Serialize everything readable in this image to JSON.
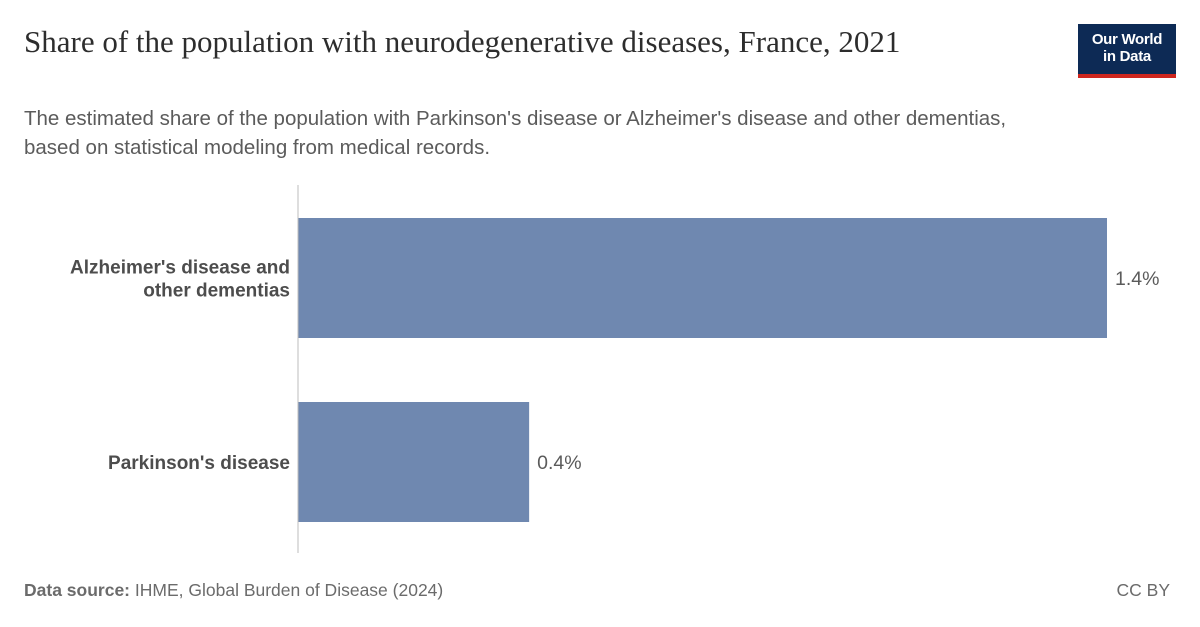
{
  "header": {
    "title": "Share of the population with neurodegenerative diseases, France, 2021",
    "subtitle": "The estimated share of the population with Parkinson's disease or Alzheimer's disease and other dementias, based on statistical modeling from medical records."
  },
  "logo": {
    "line1": "Our World",
    "line2": "in Data",
    "background": "#0d2a55",
    "accent": "#ce261e"
  },
  "chart_data": {
    "type": "bar",
    "orientation": "horizontal",
    "title": "Share of the population with neurodegenerative diseases, France, 2021",
    "categories": [
      {
        "label_lines": [
          "Alzheimer's disease and",
          "other dementias"
        ],
        "value": 1.4,
        "value_label": "1.4%"
      },
      {
        "label_lines": [
          "Parkinson's disease"
        ],
        "value": 0.4,
        "value_label": "0.4%"
      }
    ],
    "unit": "%",
    "xlim": [
      0,
      1.4
    ],
    "bar_color": "#6f88b0",
    "axis_color": "#bdbdbd",
    "grid": false
  },
  "footer": {
    "source_label": "Data source:",
    "source_text": "IHME, Global Burden of Disease (2024)",
    "license": "CC BY"
  }
}
